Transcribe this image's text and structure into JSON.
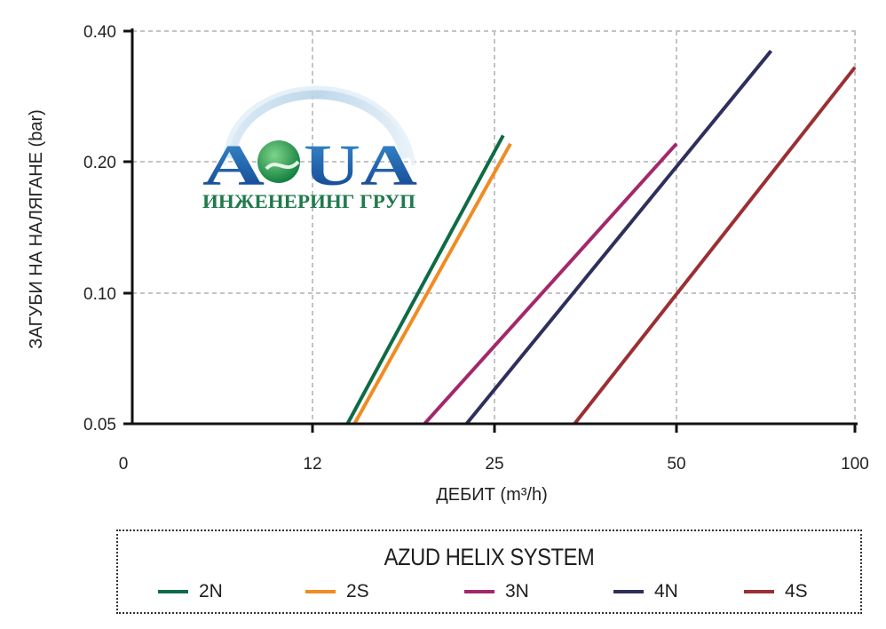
{
  "chart_data": {
    "type": "line",
    "title": "",
    "xlabel": "ДЕБИТ (m³/h)",
    "ylabel": "ЗАГУБИ НА НАЛЯГАНЕ  (bar)",
    "x_ticks": [
      "0",
      "12",
      "25",
      "50",
      "100"
    ],
    "y_ticks": [
      "0.05",
      "0.10",
      "0.20",
      "0.40"
    ],
    "x_scale": "log-like (piecewise)",
    "y_scale": "log",
    "grid": true,
    "series": [
      {
        "name": "2N",
        "color": "#0e6b45",
        "points": [
          [
            14.5,
            0.05
          ],
          [
            26.2,
            0.23
          ]
        ]
      },
      {
        "name": "2S",
        "color": "#f18b22",
        "points": [
          [
            15.0,
            0.05
          ],
          [
            27.2,
            0.22
          ]
        ]
      },
      {
        "name": "3N",
        "color": "#a3286a",
        "points": [
          [
            20.0,
            0.05
          ],
          [
            50.0,
            0.22
          ]
        ]
      },
      {
        "name": "4N",
        "color": "#2e2f5c",
        "points": [
          [
            23.0,
            0.05
          ],
          [
            76.5,
            0.36
          ]
        ]
      },
      {
        "name": "4S",
        "color": "#9b2f33",
        "points": [
          [
            36.0,
            0.05
          ],
          [
            100.0,
            0.33
          ]
        ]
      }
    ]
  },
  "legend": {
    "title": "AZUD HELIX SYSTEM",
    "items": [
      {
        "label": "2N",
        "color": "#0e6b45"
      },
      {
        "label": "2S",
        "color": "#f18b22"
      },
      {
        "label": "3N",
        "color": "#a3286a"
      },
      {
        "label": "4N",
        "color": "#2e2f5c"
      },
      {
        "label": "4S",
        "color": "#9b2f33"
      }
    ]
  },
  "logo": {
    "name": "AQUA",
    "tagline": "ИНЖЕНЕРИНГ ГРУП"
  }
}
